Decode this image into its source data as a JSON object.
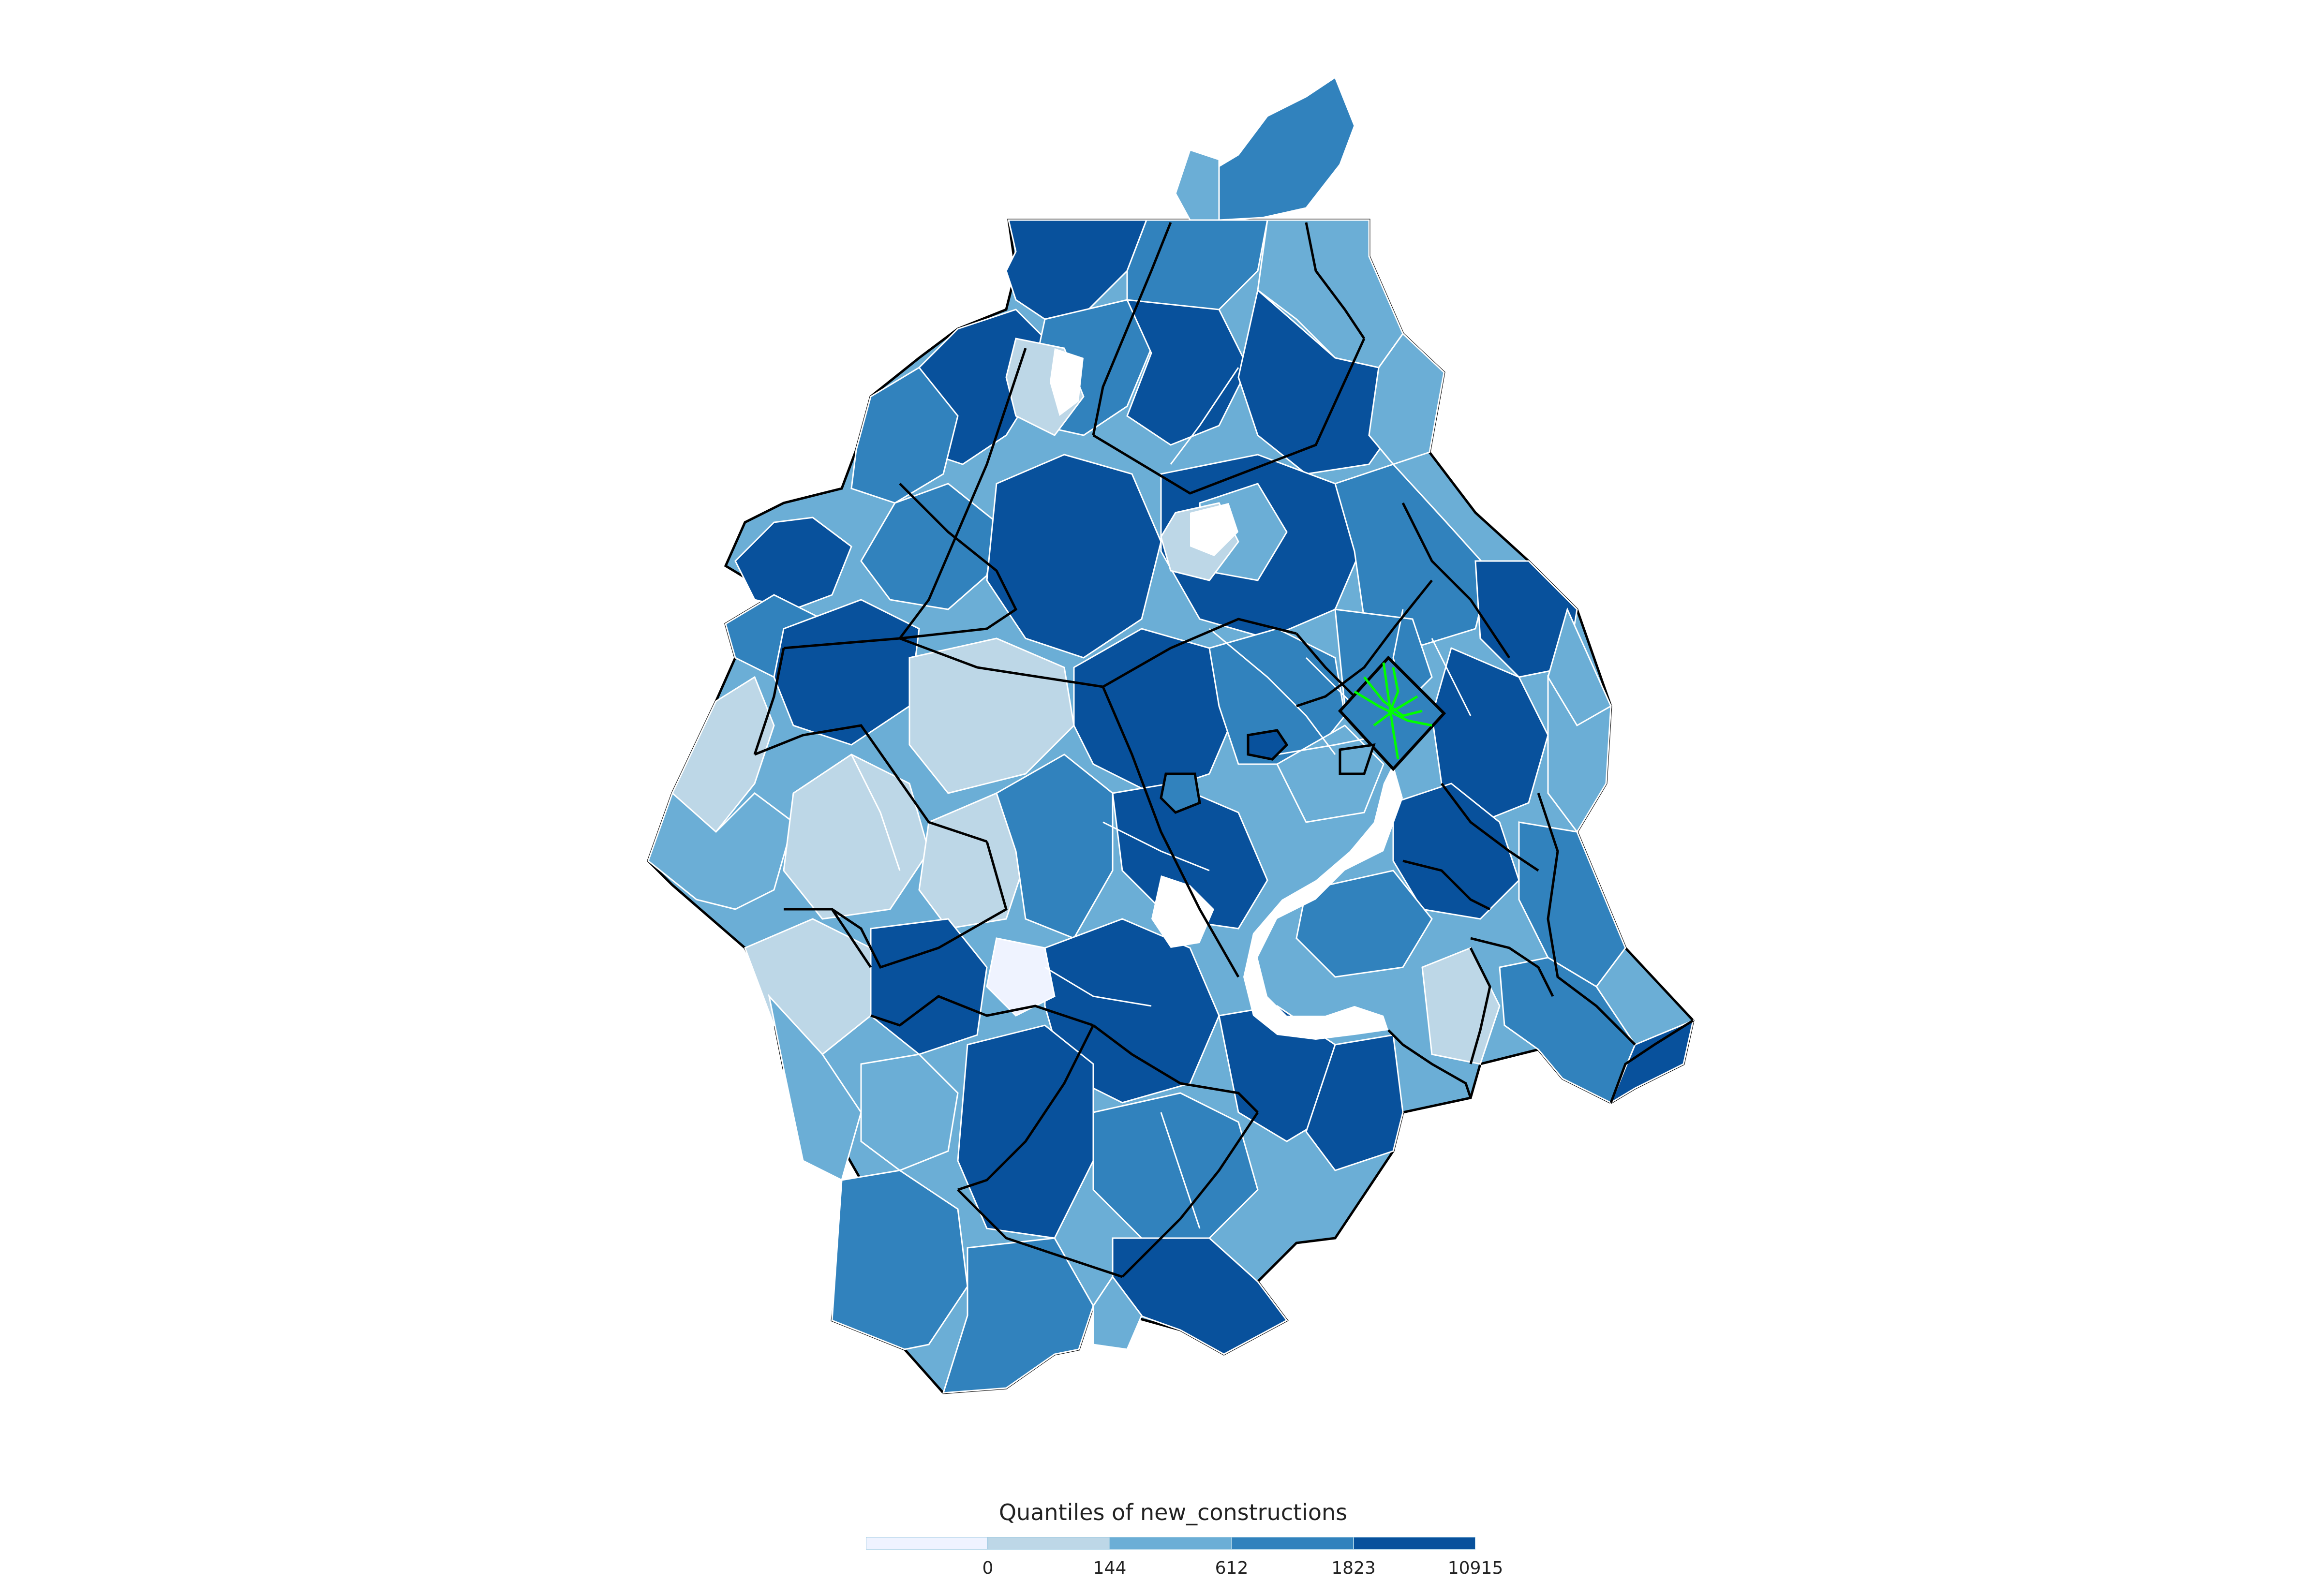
{
  "map": {
    "palette": [
      "#eff3ff",
      "#bdd7e7",
      "#6baed6",
      "#3182bd",
      "#08519c"
    ],
    "county_border_color": "#000000",
    "tract_border_color": "#ffffff",
    "transit_line_color": "#00ff00"
  },
  "legend": {
    "title": "Quantiles of new_constructions",
    "ticks": [
      "0",
      "144",
      "612",
      "1823",
      "10915"
    ],
    "classes": [
      {
        "color": "#eff3ff"
      },
      {
        "color": "#bdd7e7"
      },
      {
        "color": "#6baed6"
      },
      {
        "color": "#3182bd"
      },
      {
        "color": "#08519c"
      }
    ]
  }
}
